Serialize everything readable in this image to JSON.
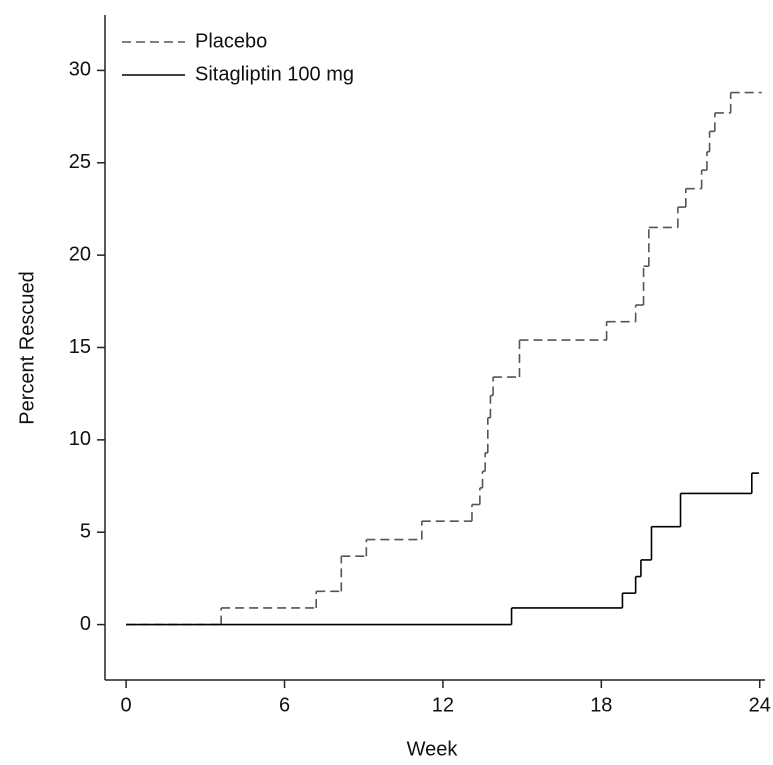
{
  "chart_data": {
    "type": "step",
    "x_label": "Week",
    "y_label": "Percent Rescued",
    "xlim": [
      -0.8,
      24.2
    ],
    "xticks": [
      0,
      6,
      12,
      18,
      24
    ],
    "ylim": [
      -3,
      33
    ],
    "yticks": [
      0,
      5,
      10,
      15,
      20,
      25,
      30
    ],
    "legend": "top-left",
    "series": [
      {
        "name": "Placebo",
        "color": "#555555",
        "dash": "9,5",
        "x": [
          0,
          3.6,
          7.2,
          8.15,
          9.1,
          11.2,
          13.1,
          13.4,
          13.5,
          13.6,
          13.7,
          13.8,
          13.9,
          14.9,
          18.2,
          19.3,
          19.6,
          19.8,
          20.9,
          21.2,
          21.8,
          22.0,
          22.1,
          22.3,
          22.9,
          24
        ],
        "values": [
          0,
          0.9,
          1.8,
          3.7,
          4.6,
          5.6,
          6.5,
          7.4,
          8.3,
          9.3,
          11.2,
          12.4,
          13.4,
          15.4,
          16.4,
          17.3,
          19.4,
          21.5,
          22.6,
          23.6,
          24.6,
          25.6,
          26.7,
          27.7,
          28.8,
          28.8
        ]
      },
      {
        "name": "Sitagliptin 100 mg",
        "color": "#000000",
        "dash": "none",
        "x": [
          0,
          14.6,
          18.8,
          19.3,
          19.5,
          19.9,
          21.0,
          23.7,
          23.9
        ],
        "values": [
          0,
          0.9,
          1.7,
          2.6,
          3.5,
          5.3,
          7.1,
          8.2,
          8.2
        ]
      }
    ]
  }
}
